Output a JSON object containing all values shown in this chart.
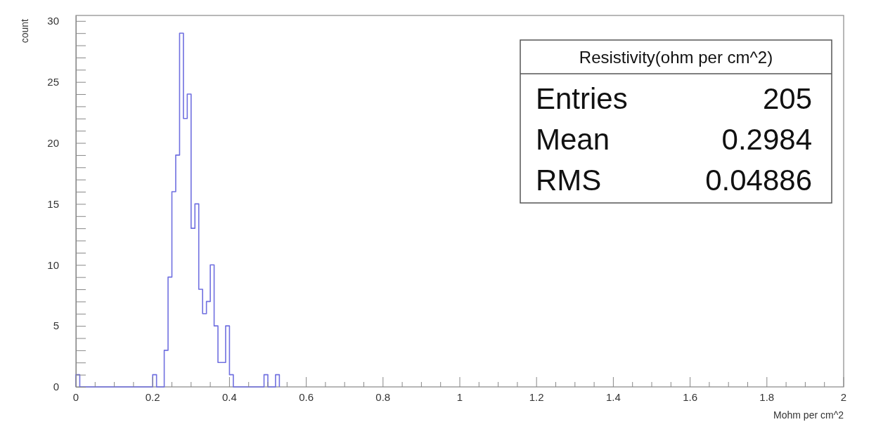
{
  "chart_data": {
    "type": "histogram",
    "xlabel": "Mohm per cm^2",
    "ylabel": "count",
    "color": "#7070e0",
    "bins": [
      0,
      0.01,
      0.02,
      0.03,
      0.04,
      0.05,
      0.06,
      0.07,
      0.08,
      0.09,
      0.1,
      0.11,
      0.12,
      0.13,
      0.14,
      0.15,
      0.16,
      0.17,
      0.18,
      0.19,
      0.2,
      0.21,
      0.22,
      0.23,
      0.24,
      0.25,
      0.26,
      0.27,
      0.28,
      0.29,
      0.3,
      0.31,
      0.32,
      0.33,
      0.34,
      0.35,
      0.36,
      0.37,
      0.38,
      0.39,
      0.4,
      0.41,
      0.42,
      0.43,
      0.44,
      0.45,
      0.46,
      0.47,
      0.48,
      0.49,
      0.5,
      0.51,
      0.52,
      0.53
    ],
    "values": [
      1,
      0,
      0,
      0,
      0,
      0,
      0,
      0,
      0,
      0,
      0,
      0,
      0,
      0,
      0,
      0,
      0,
      0,
      0,
      0,
      1,
      0,
      0,
      3,
      9,
      16,
      19,
      29,
      22,
      24,
      13,
      15,
      8,
      6,
      7,
      10,
      5,
      2,
      2,
      5,
      1,
      0,
      0,
      0,
      0,
      0,
      0,
      0,
      0,
      1,
      0,
      0,
      1
    ],
    "xlim": [
      0,
      2
    ],
    "ylim": [
      0,
      30.45
    ],
    "xticks": [
      0,
      {
        "value": 0.05,
        "label": null
      },
      {
        "value": 0.1,
        "label": null
      },
      {
        "value": 0.15,
        "label": null
      },
      0.2,
      {
        "value": 0.25,
        "label": null
      },
      {
        "value": 0.3,
        "label": null
      },
      {
        "value": 0.35,
        "label": null
      },
      0.4,
      {
        "value": 0.45,
        "label": null
      },
      {
        "value": 0.5,
        "label": null
      },
      {
        "value": 0.55,
        "label": null
      },
      0.6,
      {
        "value": 0.65,
        "label": null
      },
      {
        "value": 0.7,
        "label": null
      },
      {
        "value": 0.75,
        "label": null
      },
      0.8,
      {
        "value": 0.85,
        "label": null
      },
      {
        "value": 0.9,
        "label": null
      },
      {
        "value": 0.95,
        "label": null
      },
      1,
      {
        "value": 1.05,
        "label": null
      },
      {
        "value": 1.1,
        "label": null
      },
      {
        "value": 1.15,
        "label": null
      },
      1.2,
      {
        "value": 1.25,
        "label": null
      },
      {
        "value": 1.3,
        "label": null
      },
      {
        "value": 1.35,
        "label": null
      },
      1.4,
      {
        "value": 1.45,
        "label": null
      },
      {
        "value": 1.5,
        "label": null
      },
      {
        "value": 1.55,
        "label": null
      },
      1.6,
      {
        "value": 1.65,
        "label": null
      },
      {
        "value": 1.7,
        "label": null
      },
      {
        "value": 1.75,
        "label": null
      },
      1.8,
      {
        "value": 1.85,
        "label": null
      },
      {
        "value": 1.9,
        "label": null
      },
      {
        "value": 1.95,
        "label": null
      },
      2
    ],
    "yticks": [
      0,
      {
        "value": 1,
        "label": null
      },
      {
        "value": 2,
        "label": null
      },
      {
        "value": 3,
        "label": null
      },
      {
        "value": 4,
        "label": null
      },
      5,
      {
        "value": 6,
        "label": null
      },
      {
        "value": 7,
        "label": null
      },
      {
        "value": 8,
        "label": null
      },
      {
        "value": 9,
        "label": null
      },
      10,
      {
        "value": 11,
        "label": null
      },
      {
        "value": 12,
        "label": null
      },
      {
        "value": 13,
        "label": null
      },
      {
        "value": 14,
        "label": null
      },
      15,
      {
        "value": 16,
        "label": null
      },
      {
        "value": 17,
        "label": null
      },
      {
        "value": 18,
        "label": null
      },
      {
        "value": 19,
        "label": null
      },
      20,
      {
        "value": 21,
        "label": null
      },
      {
        "value": 22,
        "label": null
      },
      {
        "value": 23,
        "label": null
      },
      {
        "value": 24,
        "label": null
      },
      25,
      {
        "value": 26,
        "label": null
      },
      {
        "value": 27,
        "label": null
      },
      {
        "value": 28,
        "label": null
      },
      {
        "value": 29,
        "label": null
      },
      30
    ],
    "annotations": [
      "Resistivity(ohm per cm^2)",
      "Entries",
      "205",
      "Mean",
      "0.2984",
      "RMS",
      "0.04886"
    ]
  }
}
